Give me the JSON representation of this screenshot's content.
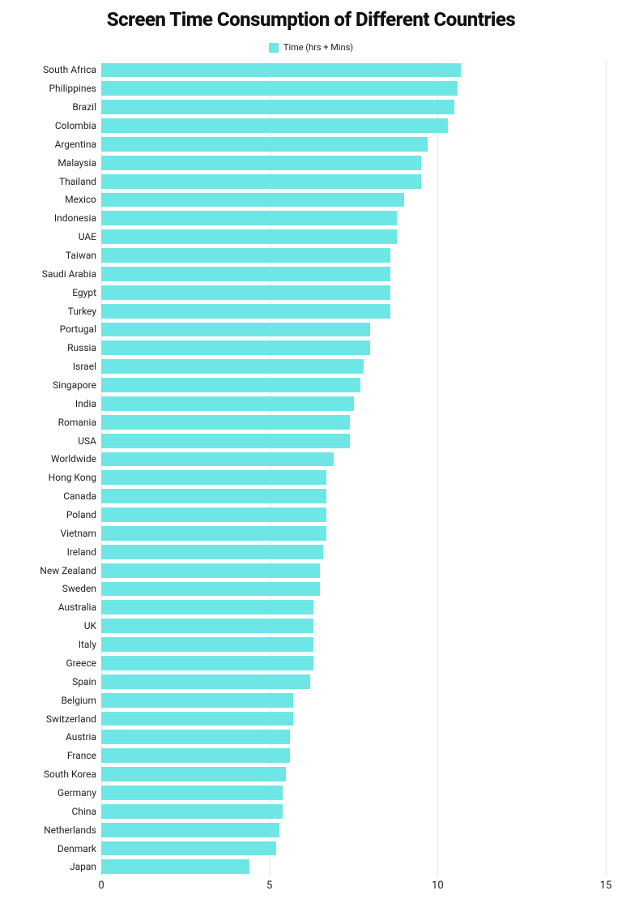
{
  "chart": {
    "type": "bar-horizontal",
    "title": "Screen Time Consumption of Different Countries",
    "title_fontsize": 24,
    "title_color": "#111111",
    "legend": {
      "label": "Time (hrs + Mins)",
      "swatch_color": "#6fe6e6",
      "label_fontsize": 11,
      "label_color": "#222222"
    },
    "background_color": "#ffffff",
    "bar_color": "#6fe6e6",
    "bar_fill_ratio": 0.78,
    "grid_color": "#e8e8e8",
    "y_label_fontsize": 12,
    "y_label_color": "#222222",
    "x_tick_fontsize": 13,
    "x_tick_color": "#222222",
    "xlim": [
      0,
      15
    ],
    "xticks": [
      0,
      5,
      10,
      15
    ],
    "data": [
      {
        "country": "South Africa",
        "value": 10.7
      },
      {
        "country": "Philippines",
        "value": 10.6
      },
      {
        "country": "Brazil",
        "value": 10.5
      },
      {
        "country": "Colombia",
        "value": 10.3
      },
      {
        "country": "Argentina",
        "value": 9.7
      },
      {
        "country": "Malaysia",
        "value": 9.5
      },
      {
        "country": "Thailand",
        "value": 9.5
      },
      {
        "country": "Mexico",
        "value": 9.0
      },
      {
        "country": "Indonesia",
        "value": 8.8
      },
      {
        "country": "UAE",
        "value": 8.8
      },
      {
        "country": "Taiwan",
        "value": 8.6
      },
      {
        "country": "Saudi Arabia",
        "value": 8.6
      },
      {
        "country": "Egypt",
        "value": 8.6
      },
      {
        "country": "Turkey",
        "value": 8.6
      },
      {
        "country": "Portugal",
        "value": 8.0
      },
      {
        "country": "Russia",
        "value": 8.0
      },
      {
        "country": "Israel",
        "value": 7.8
      },
      {
        "country": "Singapore",
        "value": 7.7
      },
      {
        "country": "India",
        "value": 7.5
      },
      {
        "country": "Romania",
        "value": 7.4
      },
      {
        "country": "USA",
        "value": 7.4
      },
      {
        "country": "Worldwide",
        "value": 6.9
      },
      {
        "country": "Hong Kong",
        "value": 6.7
      },
      {
        "country": "Canada",
        "value": 6.7
      },
      {
        "country": "Poland",
        "value": 6.7
      },
      {
        "country": "Vietnam",
        "value": 6.7
      },
      {
        "country": "Ireland",
        "value": 6.6
      },
      {
        "country": "New Zealand",
        "value": 6.5
      },
      {
        "country": "Sweden",
        "value": 6.5
      },
      {
        "country": "Australia",
        "value": 6.3
      },
      {
        "country": "UK",
        "value": 6.3
      },
      {
        "country": "Italy",
        "value": 6.3
      },
      {
        "country": "Greece",
        "value": 6.3
      },
      {
        "country": "Spain",
        "value": 6.2
      },
      {
        "country": "Belgium",
        "value": 5.7
      },
      {
        "country": "Switzerland",
        "value": 5.7
      },
      {
        "country": "Austria",
        "value": 5.6
      },
      {
        "country": "France",
        "value": 5.6
      },
      {
        "country": "South Korea",
        "value": 5.5
      },
      {
        "country": "Germany",
        "value": 5.4
      },
      {
        "country": "China",
        "value": 5.4
      },
      {
        "country": "Netherlands",
        "value": 5.3
      },
      {
        "country": "Denmark",
        "value": 5.2
      },
      {
        "country": "Japan",
        "value": 4.4
      }
    ]
  }
}
